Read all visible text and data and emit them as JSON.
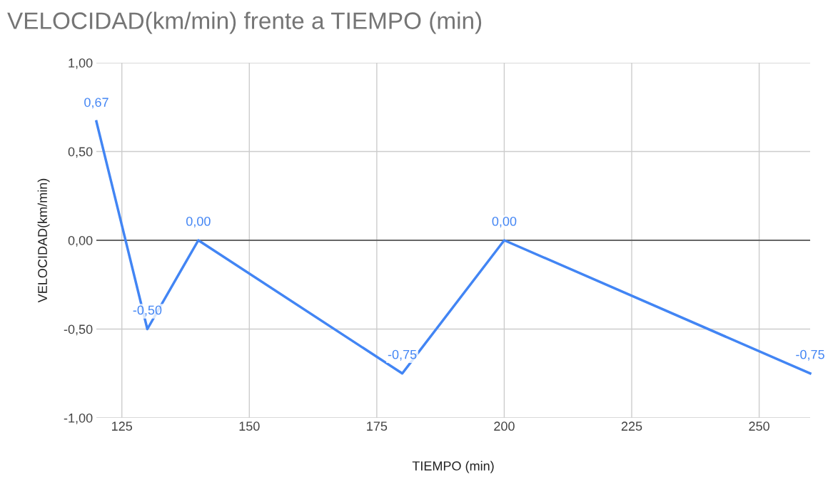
{
  "chart_data": {
    "type": "line",
    "title": "VELOCIDAD(km/min) frente a TIEMPO (min)",
    "xlabel": "TIEMPO (min)",
    "ylabel": "VELOCIDAD(km/min)",
    "x": [
      120,
      130,
      140,
      180,
      200,
      260
    ],
    "series": [
      {
        "color": "#4285f4",
        "values": [
          0.67,
          -0.5,
          0,
          -0.75,
          0,
          -0.75
        ],
        "value_labels": [
          "0,67",
          "-0,50",
          "0,00",
          "-0,75",
          "0,00",
          "-0,75"
        ]
      }
    ],
    "xlim": [
      120,
      260
    ],
    "xticks": [
      125,
      150,
      175,
      200,
      225,
      250
    ],
    "ylim": [
      -1,
      1
    ],
    "yticks": [
      {
        "value": -1,
        "label": "-1,00"
      },
      {
        "value": -0.5,
        "label": "-0,50"
      },
      {
        "value": 0,
        "label": "0,00"
      },
      {
        "value": 0.5,
        "label": "0,50"
      },
      {
        "value": 1,
        "label": "1,00"
      }
    ],
    "ref_lines": [
      {
        "axis": "y",
        "value": 0,
        "label": null,
        "color": "#666666"
      }
    ],
    "grid": true,
    "marker": "none",
    "line_style": "solid",
    "legend": false
  }
}
